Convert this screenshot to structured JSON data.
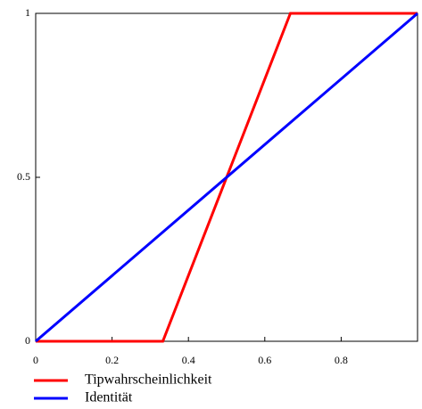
{
  "chart_data": {
    "type": "line",
    "series": [
      {
        "name": "Tipwahrscheinlichkeit",
        "color": "#ff0000",
        "x": [
          0,
          0.333,
          0.667,
          1
        ],
        "values": [
          0,
          0,
          1,
          1
        ]
      },
      {
        "name": "Identität",
        "color": "#0000ff",
        "x": [
          0,
          1
        ],
        "values": [
          0,
          1
        ]
      }
    ],
    "xlim": [
      0,
      1
    ],
    "xticks": [
      0,
      0.2,
      0.4,
      0.6,
      0.8
    ],
    "ylim": [
      0,
      1
    ],
    "yticks": [
      0,
      0.5,
      1
    ],
    "legend": "bottom"
  }
}
